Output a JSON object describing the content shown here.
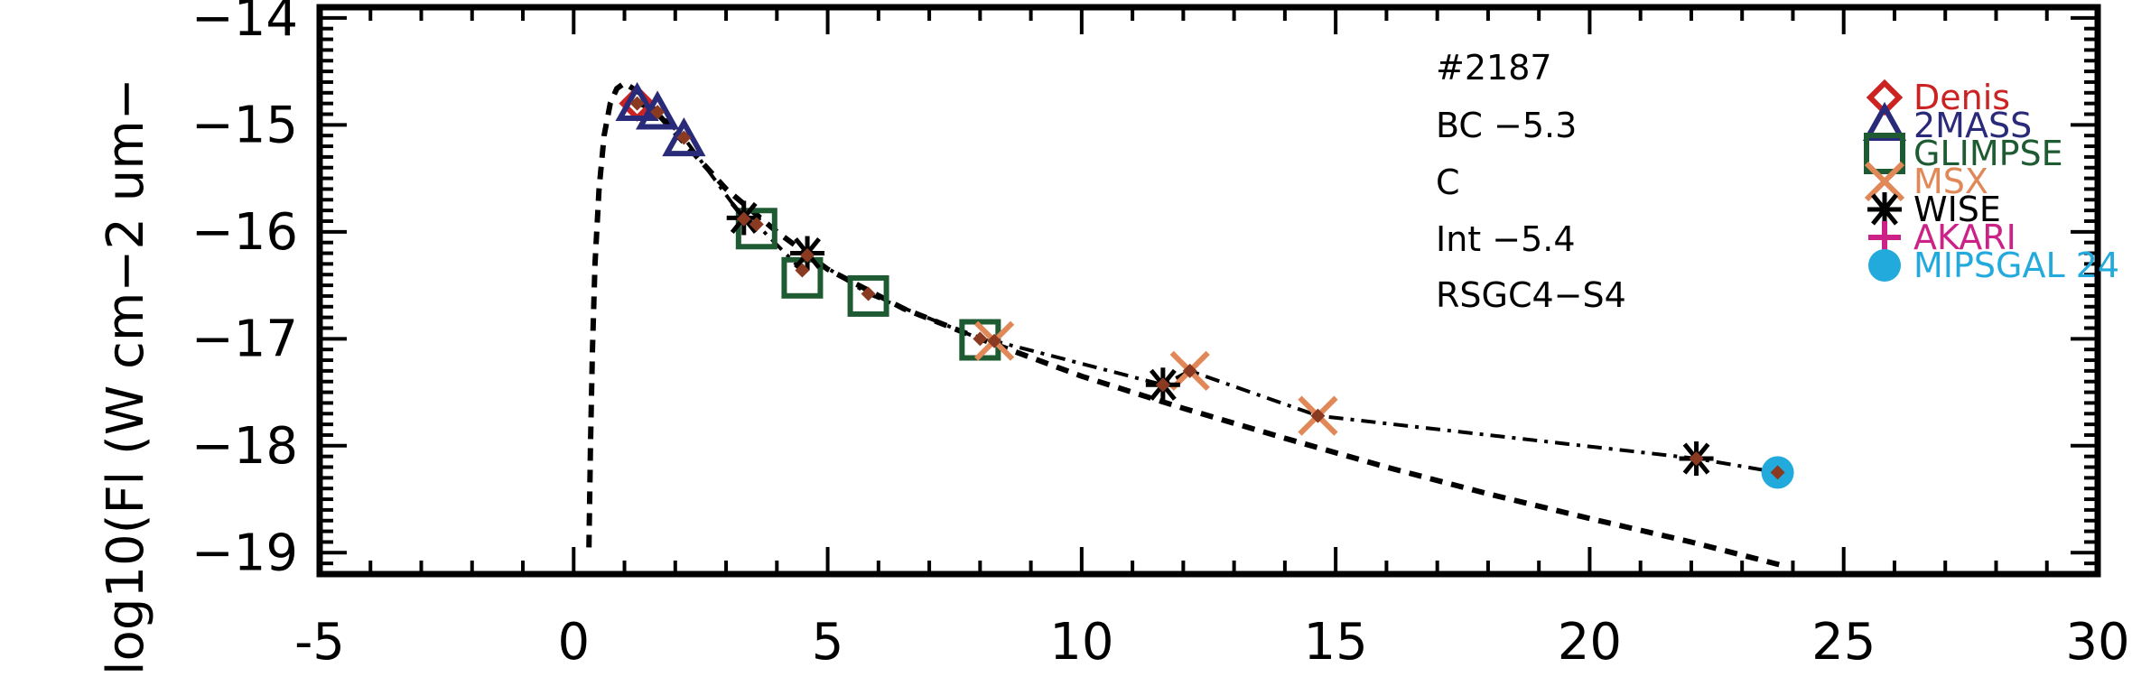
{
  "chart_data": {
    "type": "scatter",
    "xlim": [
      -5,
      30
    ],
    "ylim": [
      -19.2,
      -13.9
    ],
    "x_ticks": [
      "-5",
      "0",
      "5",
      "10",
      "15",
      "20",
      "25",
      "30"
    ],
    "y_ticks": [
      "-14",
      "-15",
      "-16",
      "-17",
      "-18",
      "-19"
    ],
    "ylabel": "log10(Fl (W cm−2 um−",
    "annotations": [
      "#2187",
      "BC −5.3",
      "C",
      "Int −5.4",
      "RSGC4−S4"
    ],
    "series": [
      {
        "name": "Denis",
        "color": "#cc2222",
        "marker": "diamond",
        "x": [
          1.25
        ],
        "y": [
          -14.8
        ]
      },
      {
        "name": "2MASS",
        "color": "#2a2a7a",
        "marker": "triangle",
        "x": [
          1.25,
          1.65,
          2.17
        ],
        "y": [
          -14.82,
          -14.9,
          -15.15
        ]
      },
      {
        "name": "GLIMPSE",
        "color": "#1e5a32",
        "marker": "square",
        "x": [
          3.6,
          4.5,
          5.8,
          8.0
        ],
        "y": [
          -15.97,
          -16.43,
          -16.6,
          -17.01
        ]
      },
      {
        "name": "MSX",
        "color": "#e08858",
        "marker": "x",
        "x": [
          8.28,
          12.13,
          14.65
        ],
        "y": [
          -17.02,
          -17.3,
          -17.72
        ]
      },
      {
        "name": "WISE",
        "color": "#000000",
        "marker": "asterisk",
        "x": [
          3.35,
          4.6,
          11.6,
          22.1
        ],
        "y": [
          -15.87,
          -16.2,
          -17.43,
          -18.12
        ]
      },
      {
        "name": "AKARI",
        "color": "#cc2288",
        "marker": "plus",
        "x": [],
        "y": []
      },
      {
        "name": "MIPSGAL 24",
        "color": "#22aadd",
        "marker": "circle",
        "x": [
          23.7
        ],
        "y": [
          -18.25
        ]
      }
    ],
    "flux_points": {
      "color": "#8b3a22",
      "x": [
        1.25,
        1.65,
        2.17,
        3.35,
        3.6,
        4.5,
        4.6,
        5.8,
        8.0,
        8.28,
        11.6,
        12.13,
        14.65,
        22.1,
        23.7
      ],
      "y": [
        -14.8,
        -14.88,
        -15.12,
        -15.88,
        -15.93,
        -16.36,
        -16.22,
        -16.58,
        -17.0,
        -17.02,
        -17.43,
        -17.3,
        -17.72,
        -18.12,
        -18.25
      ]
    },
    "observed_sed_curve": {
      "style": "dash-dot",
      "x": [
        1.25,
        1.65,
        2.17,
        3.35,
        3.6,
        4.5,
        4.6,
        5.8,
        8.0,
        8.28,
        11.6,
        12.13,
        14.65,
        22.1,
        23.7
      ],
      "y": [
        -14.8,
        -14.88,
        -15.12,
        -15.88,
        -15.93,
        -16.36,
        -16.22,
        -16.58,
        -17.0,
        -17.02,
        -17.43,
        -17.3,
        -17.72,
        -18.12,
        -18.25
      ]
    },
    "model_curve": {
      "style": "dashed",
      "x": [
        0.3,
        0.33,
        0.37,
        0.42,
        0.5,
        0.6,
        0.72,
        0.85,
        1.0,
        1.3,
        1.7,
        2.2,
        3.0,
        4.0,
        5.0,
        6.5,
        8.0,
        10.0,
        12.0,
        14.0,
        16.0,
        18.0,
        20.0,
        22.0,
        23.8
      ],
      "y": [
        -18.95,
        -18.0,
        -17.1,
        -16.3,
        -15.6,
        -15.1,
        -14.8,
        -14.66,
        -14.61,
        -14.7,
        -14.92,
        -15.18,
        -15.6,
        -16.0,
        -16.35,
        -16.72,
        -17.0,
        -17.35,
        -17.65,
        -17.93,
        -18.2,
        -18.45,
        -18.68,
        -18.9,
        -19.12
      ]
    },
    "legend_position": "top-right"
  }
}
